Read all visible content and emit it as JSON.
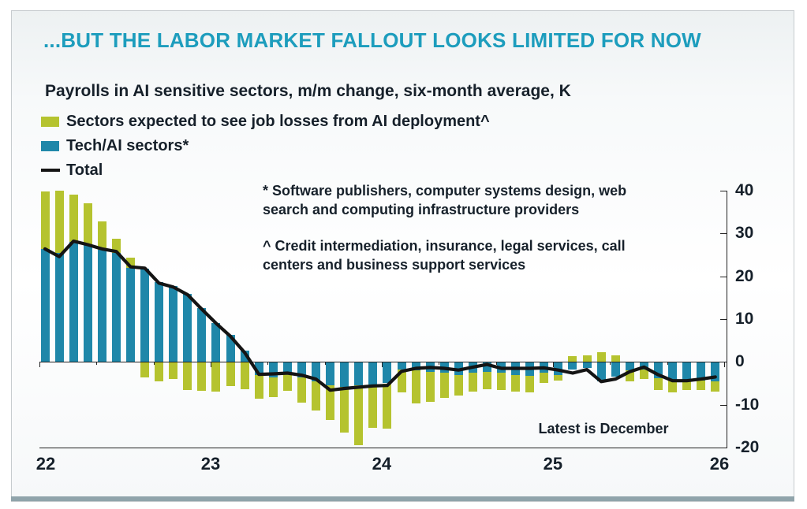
{
  "header": {
    "title": "...BUT THE LABOR MARKET FALLOUT LOOKS LIMITED FOR NOW"
  },
  "chart": {
    "subtitle": "Payrolls in AI sensitive sectors, m/m change, six-month average, K",
    "legend": [
      {
        "label": "Sectors expected to see job losses from AI deployment^",
        "color": "#b5c32f",
        "type": "bar"
      },
      {
        "label": "Tech/AI sectors*",
        "color": "#1f87a9",
        "type": "bar"
      },
      {
        "label": "Total",
        "color": "#141414",
        "type": "line"
      }
    ],
    "footnote_software": "* Software publishers, computer systems design, web search and computing infrastructure providers",
    "footnote_credit": "^ Credit intermediation, insurance, legal services, call centers and business support services",
    "latest_label": "Latest is December",
    "colors": {
      "title": "#1d9dbd",
      "top_rule": "#6b661b",
      "bottom_rule": "#90a4ab",
      "text": "#16202a",
      "yellow_bar": "#b5c32f",
      "teal_bar": "#1f87a9",
      "total_line": "#141414"
    }
  },
  "chart_data": {
    "type": "bar",
    "subtype": "stacked-monthly-bars-with-total-line",
    "x_unit": "month",
    "x_start": "2022-01",
    "x_end": "2025-12",
    "x_tick_labels": [
      "22",
      "23",
      "24",
      "25",
      "26"
    ],
    "ylim": [
      -20,
      40
    ],
    "yticks": [
      40,
      30,
      20,
      10,
      0,
      -10,
      -20
    ],
    "grid": "zero-line-only",
    "legend_position": "top-left",
    "stack_note": "teal series plotted adjacent to zero; yellow stacked beyond it when same sign, from zero when opposite sign",
    "series": [
      {
        "name": "Sectors expected to see job losses from AI deployment^",
        "role": "yellow",
        "type": "bar",
        "color": "#b5c32f",
        "values": [
          13.4,
          14.6,
          11.0,
          9.8,
          6.7,
          3.3,
          2.3,
          -3.6,
          -4.6,
          -4.0,
          -6.5,
          -6.7,
          -6.9,
          -5.7,
          -6.3,
          -5.5,
          -4.7,
          -4.0,
          -5.8,
          -6.8,
          -8.0,
          -10.7,
          -14.0,
          -10.2,
          -10.5,
          -5.5,
          -7.7,
          -7.0,
          -5.8,
          -4.8,
          -4.3,
          -4.0,
          -4.0,
          -3.9,
          -3.9,
          -2.4,
          -1.4,
          1.4,
          1.6,
          2.2,
          1.5,
          -2.5,
          -2.2,
          -2.8,
          -2.8,
          -2.5,
          -2.2,
          -2.5
        ]
      },
      {
        "name": "Tech/AI sectors*",
        "role": "teal",
        "type": "bar",
        "color": "#1f87a9",
        "values": [
          26.4,
          25.4,
          28.0,
          27.3,
          26.2,
          25.5,
          22.0,
          21.7,
          18.6,
          17.7,
          15.9,
          12.5,
          9.1,
          6.3,
          2.6,
          -3.1,
          -3.6,
          -2.8,
          -3.7,
          -4.6,
          -5.5,
          -5.8,
          -5.5,
          -5.2,
          -5.0,
          -1.7,
          -2.0,
          -2.3,
          -2.6,
          -3.0,
          -2.6,
          -2.3,
          -2.6,
          -3.0,
          -3.3,
          -2.6,
          -3.0,
          -1.7,
          -1.4,
          -4.5,
          -3.5,
          -2.0,
          -1.8,
          -3.8,
          -4.4,
          -4.1,
          -4.3,
          -4.5
        ]
      },
      {
        "name": "Total",
        "role": "total",
        "type": "line",
        "color": "#141414",
        "values": [
          26.4,
          24.6,
          28.2,
          27.4,
          26.4,
          25.8,
          22.2,
          21.9,
          18.4,
          17.5,
          15.7,
          12.3,
          9.0,
          6.0,
          2.2,
          -2.9,
          -2.8,
          -2.6,
          -3.1,
          -4.0,
          -6.6,
          -6.2,
          -5.9,
          -5.6,
          -5.5,
          -2.2,
          -1.5,
          -1.3,
          -1.5,
          -1.9,
          -1.2,
          -0.6,
          -1.5,
          -1.5,
          -1.5,
          -1.4,
          -1.9,
          -2.6,
          -1.8,
          -4.6,
          -4.0,
          -2.3,
          -1.2,
          -3.0,
          -4.4,
          -4.4,
          -4.0,
          -3.5
        ]
      }
    ],
    "annotations": [
      "Latest is December"
    ]
  }
}
